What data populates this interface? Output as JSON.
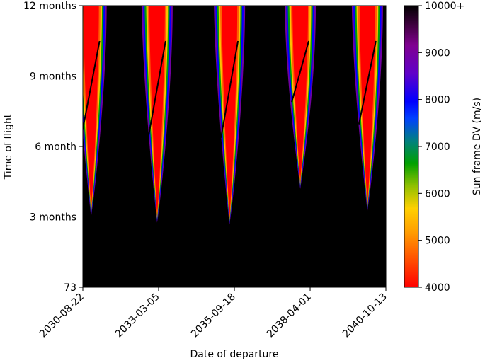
{
  "chart_data": {
    "type": "heatmap",
    "title": "",
    "xlabel": "Date of departure",
    "ylabel": "Time of flight",
    "x_ticks": [
      "2030-08-22",
      "2033-03-05",
      "2035-09-18",
      "2038-04-01",
      "2040-10-13"
    ],
    "x_tick_values": [
      "2030-08-22",
      "2033-03-05",
      "2035-09-18",
      "2038-04-01",
      "2040-10-13"
    ],
    "xlim": [
      "2030-08-22",
      "2040-10-13"
    ],
    "y_ticks": [
      "73",
      "3 months",
      "6 month",
      "9 months",
      "12 months"
    ],
    "y_tick_values_days": [
      73,
      146,
      219,
      292,
      365
    ],
    "ylim_days": [
      73,
      365
    ],
    "colorbar": {
      "label": "Sun frame DV (m/s)",
      "ticks": [
        "4000",
        "5000",
        "6000",
        "7000",
        "8000",
        "9000",
        "10000+"
      ],
      "tick_values": [
        4000,
        5000,
        6000,
        7000,
        8000,
        9000,
        10000
      ],
      "range": [
        4000,
        10000
      ]
    },
    "colormap": [
      "#ff0000",
      "#ff6000",
      "#ffc000",
      "#00aa00",
      "#0000ff",
      "#8000c0",
      "#000000"
    ],
    "windows": [
      {
        "center_departure": "2030-12-01",
        "min_tof_days": 146,
        "min_dv": 4000
      },
      {
        "center_departure": "2033-02-15",
        "min_tof_days": 140,
        "min_dv": 4000
      },
      {
        "center_departure": "2035-07-20",
        "min_tof_days": 138,
        "min_dv": 4000
      },
      {
        "center_departure": "2037-12-01",
        "min_tof_days": 175,
        "min_dv": 4000
      },
      {
        "center_departure": "2040-03-01",
        "min_tof_days": 152,
        "min_dv": 4200
      }
    ]
  }
}
